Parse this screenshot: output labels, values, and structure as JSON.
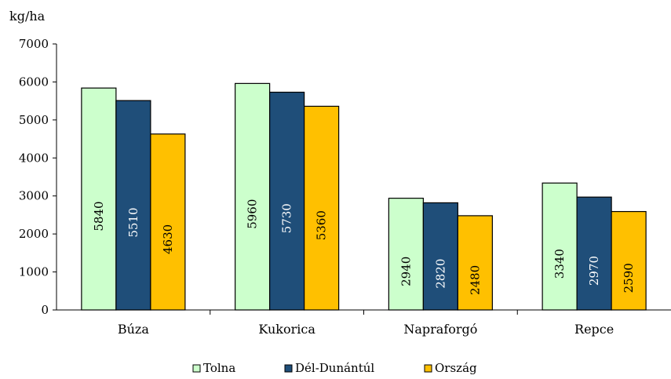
{
  "chart_data": {
    "type": "bar",
    "ylabel": "kg/ha",
    "ylim": [
      0,
      7000
    ],
    "yticks": [
      0,
      1000,
      2000,
      3000,
      4000,
      5000,
      6000,
      7000
    ],
    "categories": [
      "Búza",
      "Kukorica",
      "Napraforgó",
      "Repce"
    ],
    "series": [
      {
        "name": "Tolna",
        "color": "#ccffcc",
        "label_color": "#000000",
        "values": [
          5840,
          5960,
          2940,
          3340
        ]
      },
      {
        "name": "Dél-Dunántúl",
        "color": "#1f4e79",
        "label_color": "#ffffff",
        "values": [
          5510,
          5730,
          2820,
          2970
        ]
      },
      {
        "name": "Ország",
        "color": "#ffc000",
        "label_color": "#000000",
        "values": [
          4630,
          5360,
          2480,
          2590
        ]
      }
    ],
    "data_labels": "inside-rotated",
    "legend": "bottom",
    "grid": false
  }
}
